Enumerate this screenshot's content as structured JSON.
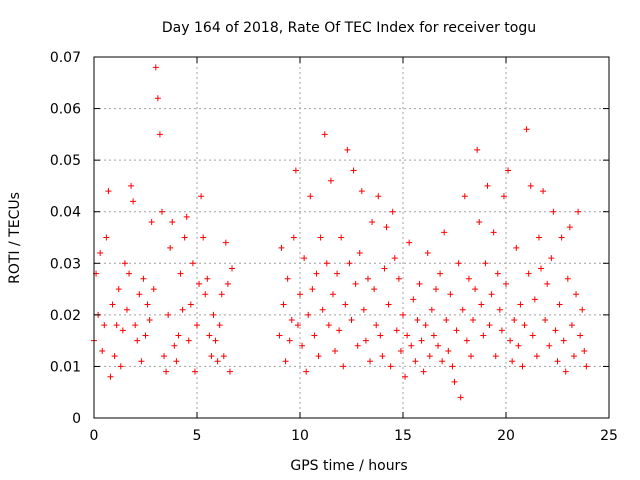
{
  "chart_data": {
    "type": "scatter",
    "title": "Day 164 of 2018, Rate Of TEC Index for receiver togu",
    "xlabel": "GPS time / hours",
    "ylabel": "ROTI / TECUs",
    "xlim": [
      0,
      25
    ],
    "ylim": [
      0,
      0.07
    ],
    "xticks": [
      0,
      5,
      10,
      15,
      20,
      25
    ],
    "xtick_labels": [
      "0",
      "5",
      "10",
      "15",
      "20",
      "25"
    ],
    "yticks": [
      0,
      0.01,
      0.02,
      0.03,
      0.04,
      0.05,
      0.06,
      0.07
    ],
    "ytick_labels": [
      "0",
      "0.01",
      "0.02",
      "0.03",
      "0.04",
      "0.05",
      "0.06",
      "0.07"
    ],
    "grid": true,
    "marker": "plus",
    "series": [
      {
        "name": "ROTI",
        "color": "#ff0000",
        "x": [
          0.0,
          0.1,
          0.2,
          0.3,
          0.4,
          0.5,
          0.6,
          0.7,
          0.8,
          0.9,
          1.0,
          1.1,
          1.2,
          1.3,
          1.4,
          1.5,
          1.6,
          1.7,
          1.8,
          1.9,
          2.0,
          2.1,
          2.2,
          2.3,
          2.4,
          2.5,
          2.6,
          2.7,
          2.8,
          2.9,
          3.0,
          3.1,
          3.2,
          3.3,
          3.4,
          3.5,
          3.6,
          3.7,
          3.8,
          3.9,
          4.0,
          4.1,
          4.2,
          4.3,
          4.4,
          4.5,
          4.6,
          4.7,
          4.8,
          4.9,
          5.0,
          5.1,
          5.2,
          5.3,
          5.4,
          5.5,
          5.6,
          5.7,
          5.8,
          5.9,
          6.0,
          6.1,
          6.2,
          6.3,
          6.4,
          6.5,
          6.6,
          6.7,
          9.0,
          9.1,
          9.2,
          9.3,
          9.4,
          9.5,
          9.6,
          9.7,
          9.8,
          9.9,
          10.0,
          10.1,
          10.2,
          10.3,
          10.4,
          10.5,
          10.6,
          10.7,
          10.8,
          10.9,
          11.0,
          11.1,
          11.2,
          11.3,
          11.4,
          11.5,
          11.6,
          11.7,
          11.8,
          11.9,
          12.0,
          12.1,
          12.2,
          12.3,
          12.4,
          12.5,
          12.6,
          12.7,
          12.8,
          12.9,
          13.0,
          13.1,
          13.2,
          13.3,
          13.4,
          13.5,
          13.6,
          13.7,
          13.8,
          13.9,
          14.0,
          14.1,
          14.2,
          14.3,
          14.4,
          14.5,
          14.6,
          14.7,
          14.8,
          14.9,
          15.0,
          15.1,
          15.2,
          15.3,
          15.4,
          15.5,
          15.6,
          15.7,
          15.8,
          15.9,
          16.0,
          16.1,
          16.2,
          16.3,
          16.4,
          16.5,
          16.6,
          16.7,
          16.8,
          16.9,
          17.0,
          17.1,
          17.2,
          17.3,
          17.4,
          17.5,
          17.6,
          17.7,
          17.8,
          17.9,
          18.0,
          18.1,
          18.2,
          18.3,
          18.4,
          18.5,
          18.6,
          18.7,
          18.8,
          18.9,
          19.0,
          19.1,
          19.2,
          19.3,
          19.4,
          19.5,
          19.6,
          19.7,
          19.8,
          19.9,
          20.0,
          20.1,
          20.2,
          20.3,
          20.4,
          20.5,
          20.6,
          20.7,
          20.8,
          20.9,
          21.0,
          21.1,
          21.2,
          21.3,
          21.4,
          21.5,
          21.6,
          21.7,
          21.8,
          21.9,
          22.0,
          22.1,
          22.2,
          22.3,
          22.4,
          22.5,
          22.6,
          22.7,
          22.8,
          22.9,
          23.0,
          23.1,
          23.2,
          23.3,
          23.4,
          23.5,
          23.6,
          23.7,
          23.8,
          23.9
        ],
        "y": [
          0.015,
          0.028,
          0.02,
          0.032,
          0.013,
          0.018,
          0.035,
          0.044,
          0.008,
          0.022,
          0.012,
          0.018,
          0.025,
          0.01,
          0.017,
          0.03,
          0.021,
          0.028,
          0.045,
          0.042,
          0.018,
          0.015,
          0.024,
          0.011,
          0.027,
          0.016,
          0.022,
          0.019,
          0.038,
          0.025,
          0.068,
          0.062,
          0.055,
          0.04,
          0.012,
          0.009,
          0.02,
          0.033,
          0.038,
          0.014,
          0.011,
          0.016,
          0.028,
          0.021,
          0.035,
          0.039,
          0.015,
          0.022,
          0.03,
          0.009,
          0.018,
          0.026,
          0.043,
          0.035,
          0.024,
          0.027,
          0.016,
          0.012,
          0.02,
          0.015,
          0.011,
          0.018,
          0.024,
          0.012,
          0.034,
          0.026,
          0.009,
          0.029,
          0.016,
          0.033,
          0.022,
          0.011,
          0.027,
          0.015,
          0.019,
          0.035,
          0.048,
          0.018,
          0.024,
          0.014,
          0.031,
          0.009,
          0.02,
          0.043,
          0.025,
          0.016,
          0.028,
          0.012,
          0.035,
          0.021,
          0.055,
          0.03,
          0.018,
          0.046,
          0.024,
          0.013,
          0.028,
          0.017,
          0.035,
          0.01,
          0.022,
          0.052,
          0.03,
          0.019,
          0.048,
          0.026,
          0.014,
          0.032,
          0.044,
          0.021,
          0.015,
          0.027,
          0.011,
          0.038,
          0.025,
          0.018,
          0.043,
          0.016,
          0.012,
          0.029,
          0.037,
          0.022,
          0.01,
          0.04,
          0.031,
          0.017,
          0.027,
          0.013,
          0.02,
          0.008,
          0.016,
          0.034,
          0.014,
          0.023,
          0.011,
          0.019,
          0.026,
          0.015,
          0.009,
          0.018,
          0.032,
          0.012,
          0.021,
          0.016,
          0.025,
          0.014,
          0.028,
          0.011,
          0.036,
          0.019,
          0.013,
          0.024,
          0.01,
          0.007,
          0.017,
          0.03,
          0.004,
          0.021,
          0.043,
          0.015,
          0.027,
          0.012,
          0.019,
          0.025,
          0.052,
          0.038,
          0.022,
          0.016,
          0.03,
          0.045,
          0.018,
          0.024,
          0.036,
          0.012,
          0.028,
          0.021,
          0.017,
          0.043,
          0.026,
          0.048,
          0.015,
          0.011,
          0.019,
          0.033,
          0.014,
          0.022,
          0.01,
          0.018,
          0.056,
          0.028,
          0.045,
          0.016,
          0.023,
          0.012,
          0.035,
          0.029,
          0.044,
          0.019,
          0.026,
          0.014,
          0.031,
          0.04,
          0.017,
          0.011,
          0.022,
          0.035,
          0.015,
          0.009,
          0.027,
          0.037,
          0.018,
          0.012,
          0.024,
          0.04,
          0.016,
          0.021,
          0.013,
          0.01
        ]
      }
    ]
  }
}
